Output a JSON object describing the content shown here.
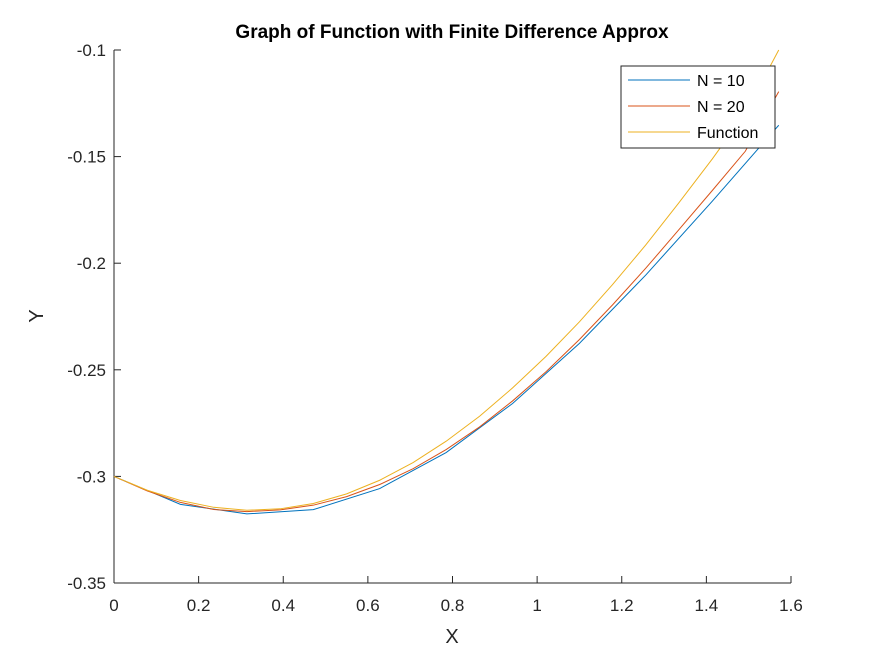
{
  "chart_data": {
    "type": "line",
    "title": "Graph of Function with Finite Difference Approx",
    "xlabel": "X",
    "ylabel": "Y",
    "xlim": [
      0,
      1.6
    ],
    "ylim": [
      -0.35,
      -0.1
    ],
    "xticks": [
      0,
      0.2,
      0.4,
      0.6,
      0.8,
      1,
      1.2,
      1.4,
      1.6
    ],
    "xtick_labels": [
      "0",
      "0.2",
      "0.4",
      "0.6",
      "0.8",
      "1",
      "1.2",
      "1.4",
      "1.6"
    ],
    "yticks": [
      -0.35,
      -0.3,
      -0.25,
      -0.2,
      -0.15,
      -0.1
    ],
    "ytick_labels": [
      "-0.35",
      "-0.3",
      "-0.25",
      "-0.2",
      "-0.15",
      "-0.1"
    ],
    "grid": false,
    "legend_position": "top-right",
    "series": [
      {
        "name": "N = 10",
        "color": "#0072BD",
        "x": [
          0,
          0.157,
          0.314,
          0.471,
          0.628,
          0.785,
          0.942,
          1.1,
          1.257,
          1.414,
          1.571
        ],
        "y": [
          -0.3,
          -0.3131,
          -0.3176,
          -0.3156,
          -0.3057,
          -0.2888,
          -0.2658,
          -0.2376,
          -0.2055,
          -0.1709,
          -0.1353
        ]
      },
      {
        "name": "N = 20",
        "color": "#D95319",
        "x": [
          0,
          0.0785,
          0.157,
          0.2356,
          0.314,
          0.3927,
          0.471,
          0.5498,
          0.628,
          0.7069,
          0.785,
          0.864,
          0.942,
          1.021,
          1.1,
          1.178,
          1.257,
          1.335,
          1.414,
          1.492,
          1.571
        ],
        "y": [
          -0.3,
          -0.3068,
          -0.3122,
          -0.3155,
          -0.3165,
          -0.3157,
          -0.3135,
          -0.3095,
          -0.3038,
          -0.2964,
          -0.2874,
          -0.2768,
          -0.2646,
          -0.2509,
          -0.2358,
          -0.2196,
          -0.2023,
          -0.1843,
          -0.1659,
          -0.1475,
          -0.1195
        ]
      },
      {
        "name": "Function",
        "color": "#EDB120",
        "x": [
          0,
          0.0785,
          0.157,
          0.2356,
          0.314,
          0.3927,
          0.471,
          0.5498,
          0.628,
          0.7069,
          0.785,
          0.864,
          0.942,
          1.021,
          1.1,
          1.178,
          1.257,
          1.335,
          1.414,
          1.492,
          1.571
        ],
        "y": [
          -0.3,
          -0.3065,
          -0.3113,
          -0.3145,
          -0.3159,
          -0.3152,
          -0.3127,
          -0.3082,
          -0.3018,
          -0.2935,
          -0.2835,
          -0.2718,
          -0.2585,
          -0.2437,
          -0.2275,
          -0.2101,
          -0.1914,
          -0.1717,
          -0.1511,
          -0.1296,
          -0.1
        ]
      }
    ]
  }
}
